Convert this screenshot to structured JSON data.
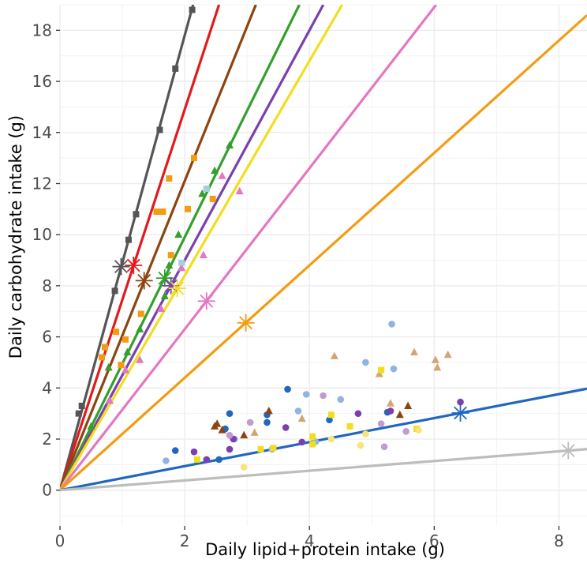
{
  "chart_data": {
    "type": "scatter",
    "title": "",
    "xlabel": "Daily lipid+protein intake (g)",
    "ylabel": "Daily carbohydrate intake (g)",
    "xlim": [
      0,
      8.45
    ],
    "ylim": [
      -1.4,
      19
    ],
    "x_ticks": [
      0,
      2,
      4,
      6,
      8
    ],
    "y_ticks": [
      0,
      2,
      4,
      6,
      8,
      10,
      12,
      14,
      16,
      18
    ],
    "grid": true,
    "background": "#ffffff",
    "grid_color": "#ebebeb",
    "legend": "none",
    "lines": [
      {
        "color": "#555555",
        "slope": 8.9
      },
      {
        "color": "#e31a1c",
        "slope": 7.45
      },
      {
        "color": "#8c4510",
        "slope": 6.05
      },
      {
        "color": "#33a02c",
        "slope": 4.95
      },
      {
        "color": "#7b3fae",
        "slope": 4.5
      },
      {
        "color": "#f2dd1e",
        "slope": 4.2
      },
      {
        "color": "#e377c2",
        "slope": 3.15
      },
      {
        "color": "#f39c12",
        "slope": 2.2
      },
      {
        "color": "#2166c0",
        "slope": 0.47
      },
      {
        "color": "#bdbdbd",
        "slope": 0.19
      }
    ],
    "series": [
      {
        "color": "#555555",
        "shape": "square",
        "points": [
          [
            0.3,
            3.0
          ],
          [
            0.35,
            3.3
          ],
          [
            0.88,
            7.8
          ],
          [
            1.1,
            9.8
          ],
          [
            1.22,
            10.8
          ],
          [
            1.6,
            14.1
          ],
          [
            1.85,
            16.5
          ],
          [
            2.12,
            18.8
          ]
        ]
      },
      {
        "color": "#f39c12",
        "shape": "square",
        "points": [
          [
            0.67,
            5.2
          ],
          [
            0.72,
            5.6
          ],
          [
            0.9,
            6.2
          ],
          [
            0.98,
            4.9
          ],
          [
            1.05,
            5.9
          ],
          [
            1.3,
            6.9
          ],
          [
            1.55,
            10.9
          ],
          [
            1.65,
            10.9
          ],
          [
            1.75,
            12.2
          ],
          [
            1.78,
            9.2
          ],
          [
            2.05,
            11.0
          ],
          [
            2.45,
            11.4
          ],
          [
            2.15,
            13.0
          ]
        ]
      },
      {
        "color": "#33a02c",
        "shape": "triangle",
        "points": [
          [
            0.5,
            2.5
          ],
          [
            0.78,
            4.8
          ],
          [
            1.08,
            5.4
          ],
          [
            1.28,
            6.3
          ],
          [
            1.68,
            7.6
          ],
          [
            1.75,
            8.8
          ],
          [
            1.9,
            10.0
          ],
          [
            2.28,
            11.6
          ],
          [
            2.48,
            12.5
          ],
          [
            2.72,
            13.5
          ]
        ]
      },
      {
        "color": "#e377c2",
        "shape": "triangle",
        "points": [
          [
            0.8,
            3.5
          ],
          [
            1.05,
            4.7
          ],
          [
            1.28,
            5.1
          ],
          [
            1.62,
            7.1
          ],
          [
            1.95,
            8.7
          ],
          [
            2.3,
            9.2
          ],
          [
            2.88,
            11.7
          ],
          [
            2.6,
            12.3
          ]
        ]
      },
      {
        "color": "#a6cee3",
        "shape": "square",
        "points": [
          [
            1.95,
            8.9
          ],
          [
            2.35,
            11.8
          ]
        ]
      },
      {
        "color": "#2166c0",
        "shape": "circle",
        "points": [
          [
            1.85,
            1.55
          ],
          [
            2.65,
            2.4
          ],
          [
            2.72,
            3.0
          ],
          [
            3.32,
            2.95
          ],
          [
            3.32,
            2.65
          ],
          [
            3.65,
            3.95
          ],
          [
            4.32,
            2.75
          ],
          [
            5.25,
            3.05
          ],
          [
            2.55,
            1.2
          ]
        ]
      },
      {
        "color": "#8fb4e3",
        "shape": "circle",
        "points": [
          [
            1.7,
            1.15
          ],
          [
            2.8,
            2.0
          ],
          [
            3.82,
            3.1
          ],
          [
            3.95,
            3.75
          ],
          [
            4.5,
            3.55
          ],
          [
            4.9,
            5.0
          ],
          [
            5.35,
            4.75
          ],
          [
            5.32,
            6.5
          ],
          [
            4.1,
            1.9
          ],
          [
            3.4,
            1.6
          ]
        ]
      },
      {
        "color": "#7b3fae",
        "shape": "circle",
        "points": [
          [
            2.15,
            1.5
          ],
          [
            2.35,
            1.2
          ],
          [
            2.72,
            1.6
          ],
          [
            2.78,
            2.0
          ],
          [
            3.62,
            2.45
          ],
          [
            3.88,
            1.88
          ],
          [
            4.78,
            3.0
          ],
          [
            5.3,
            3.1
          ],
          [
            6.42,
            3.45
          ]
        ]
      },
      {
        "color": "#c39bd3",
        "shape": "circle",
        "points": [
          [
            2.72,
            2.15
          ],
          [
            3.05,
            2.65
          ],
          [
            4.22,
            3.7
          ],
          [
            5.15,
            2.6
          ],
          [
            5.55,
            2.3
          ],
          [
            5.2,
            1.7
          ]
        ]
      },
      {
        "color": "#8c4510",
        "shape": "triangle",
        "points": [
          [
            2.48,
            2.5
          ],
          [
            2.52,
            2.6
          ],
          [
            2.6,
            2.35
          ],
          [
            2.95,
            2.15
          ],
          [
            3.35,
            3.1
          ],
          [
            5.45,
            2.95
          ],
          [
            5.58,
            3.3
          ]
        ]
      },
      {
        "color": "#d4a574",
        "shape": "triangle",
        "points": [
          [
            4.4,
            5.25
          ],
          [
            5.12,
            4.55
          ],
          [
            5.68,
            5.4
          ],
          [
            6.02,
            5.1
          ],
          [
            6.05,
            4.8
          ],
          [
            6.22,
            5.3
          ],
          [
            3.88,
            2.8
          ],
          [
            3.12,
            2.25
          ],
          [
            5.3,
            3.4
          ]
        ]
      },
      {
        "color": "#f2dd1e",
        "shape": "square",
        "points": [
          [
            2.2,
            1.2
          ],
          [
            3.22,
            1.6
          ],
          [
            3.42,
            1.65
          ],
          [
            4.05,
            2.1
          ],
          [
            4.05,
            1.8
          ],
          [
            4.65,
            2.5
          ],
          [
            5.72,
            2.4
          ],
          [
            5.15,
            4.7
          ],
          [
            4.35,
            2.95
          ]
        ]
      },
      {
        "color": "#f5e57a",
        "shape": "circle",
        "points": [
          [
            2.95,
            0.9
          ],
          [
            4.35,
            2.0
          ],
          [
            4.82,
            1.75
          ],
          [
            4.9,
            2.2
          ],
          [
            5.75,
            2.35
          ]
        ]
      }
    ],
    "asterisks": [
      {
        "color": "#555555",
        "x": 0.98,
        "y": 8.75
      },
      {
        "color": "#e31a1c",
        "x": 1.18,
        "y": 8.8
      },
      {
        "color": "#8c4510",
        "x": 1.35,
        "y": 8.2
      },
      {
        "color": "#33a02c",
        "x": 1.68,
        "y": 8.3
      },
      {
        "color": "#7b3fae",
        "x": 1.78,
        "y": 8.0
      },
      {
        "color": "#f2dd1e",
        "x": 1.88,
        "y": 7.9
      },
      {
        "color": "#e377c2",
        "x": 2.35,
        "y": 7.4
      },
      {
        "color": "#f39c12",
        "x": 2.98,
        "y": 6.55
      },
      {
        "color": "#2166c0",
        "x": 6.42,
        "y": 3.02
      },
      {
        "color": "#bdbdbd",
        "x": 8.15,
        "y": 1.55
      }
    ]
  }
}
